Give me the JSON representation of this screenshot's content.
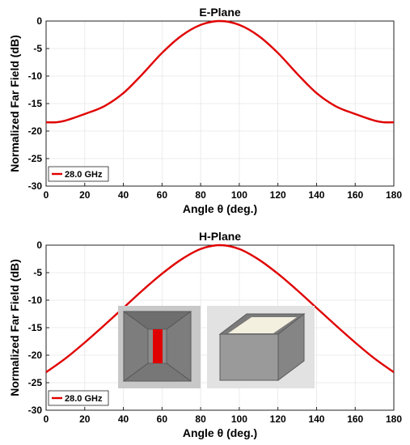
{
  "chart_data": [
    {
      "type": "line",
      "title": "E-Plane",
      "xlabel": "Angle θ (deg.)",
      "ylabel": "Normalized Far Field (dB)",
      "xlim": [
        0,
        180
      ],
      "ylim": [
        -30,
        0
      ],
      "xticks": [
        0,
        20,
        40,
        60,
        80,
        100,
        120,
        140,
        160,
        180
      ],
      "yticks": [
        0,
        -5,
        -10,
        -15,
        -20,
        -25,
        -30
      ],
      "grid": true,
      "legend_position": "bottom-left",
      "series": [
        {
          "name": "28.0 GHz",
          "color": "#e00000",
          "x": [
            0,
            5,
            10,
            20,
            30,
            40,
            50,
            60,
            70,
            80,
            90,
            100,
            110,
            120,
            130,
            140,
            150,
            160,
            170,
            175,
            180
          ],
          "y": [
            -18.4,
            -18.4,
            -18.1,
            -16.9,
            -15.5,
            -13.1,
            -9.6,
            -5.8,
            -2.7,
            -0.7,
            0,
            -0.7,
            -2.7,
            -5.8,
            -9.6,
            -13.1,
            -15.5,
            -16.9,
            -18.1,
            -18.4,
            -18.4
          ]
        }
      ]
    },
    {
      "type": "line",
      "title": "H-Plane",
      "xlabel": "Angle θ (deg.)",
      "ylabel": "Normalized Far Field (dB)",
      "xlim": [
        0,
        180
      ],
      "ylim": [
        -30,
        0
      ],
      "xticks": [
        0,
        20,
        40,
        60,
        80,
        100,
        120,
        140,
        160,
        180
      ],
      "yticks": [
        0,
        -5,
        -10,
        -15,
        -20,
        -25,
        -30
      ],
      "grid": true,
      "legend_position": "bottom-left",
      "series": [
        {
          "name": "28.0 GHz",
          "color": "#e00000",
          "x": [
            0,
            10,
            20,
            30,
            40,
            50,
            60,
            70,
            80,
            90,
            100,
            110,
            120,
            130,
            140,
            150,
            160,
            170,
            180
          ],
          "y": [
            -23.1,
            -20.6,
            -17.7,
            -14.6,
            -11.4,
            -8.2,
            -5.2,
            -2.6,
            -0.7,
            0,
            -0.7,
            -2.6,
            -5.2,
            -8.2,
            -11.4,
            -14.6,
            -17.7,
            -20.6,
            -23.1
          ]
        }
      ]
    }
  ],
  "insets": {
    "front_view_icon": "horn-antenna-front-view",
    "iso_view_icon": "horn-antenna-3d-view",
    "colors": {
      "metal": "#8c8c8c",
      "metal_dark": "#6e6e6e",
      "aperture": "#e00000",
      "frame_bg": "#c8c8c8",
      "inner_face": "#f4f0e0"
    }
  }
}
